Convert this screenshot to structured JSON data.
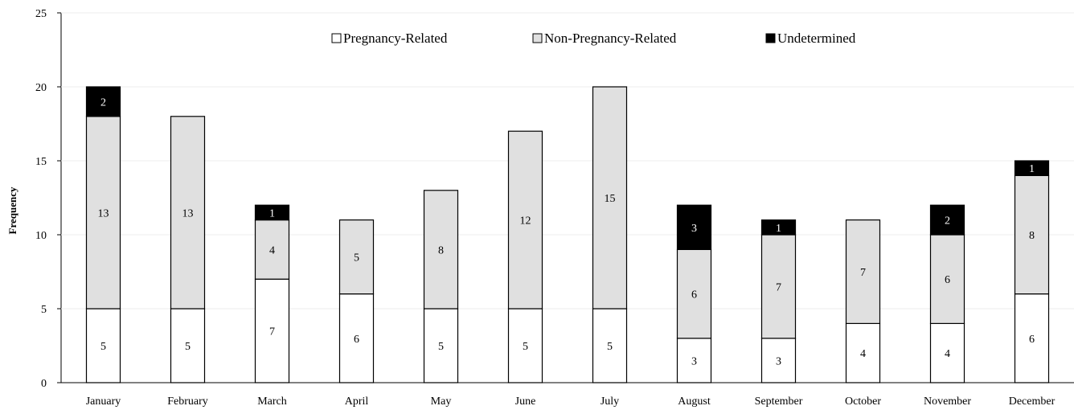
{
  "chart_data": {
    "type": "bar",
    "stacked": true,
    "ylabel": "Frequency",
    "xlabel": "",
    "ylim": [
      0,
      25
    ],
    "yticks": [
      0,
      5,
      10,
      15,
      20,
      25
    ],
    "grid": "horizontal",
    "legend_position": "top",
    "categories": [
      "January",
      "February",
      "March",
      "April",
      "May",
      "June",
      "July",
      "August",
      "September",
      "October",
      "November",
      "December"
    ],
    "series": [
      {
        "name": "Pregnancy-Related",
        "color": "#ffffff",
        "label_color": "#000000",
        "values": [
          5,
          5,
          7,
          6,
          5,
          5,
          5,
          3,
          3,
          4,
          4,
          6
        ]
      },
      {
        "name": "Non-Pregnancy-Related",
        "color": "#e0e0e0",
        "label_color": "#000000",
        "values": [
          13,
          13,
          4,
          5,
          8,
          12,
          15,
          6,
          7,
          7,
          6,
          8
        ]
      },
      {
        "name": "Undetermined",
        "color": "#000000",
        "label_color": "#ffffff",
        "values": [
          2,
          0,
          1,
          0,
          0,
          0,
          0,
          3,
          1,
          0,
          2,
          1
        ]
      }
    ]
  }
}
